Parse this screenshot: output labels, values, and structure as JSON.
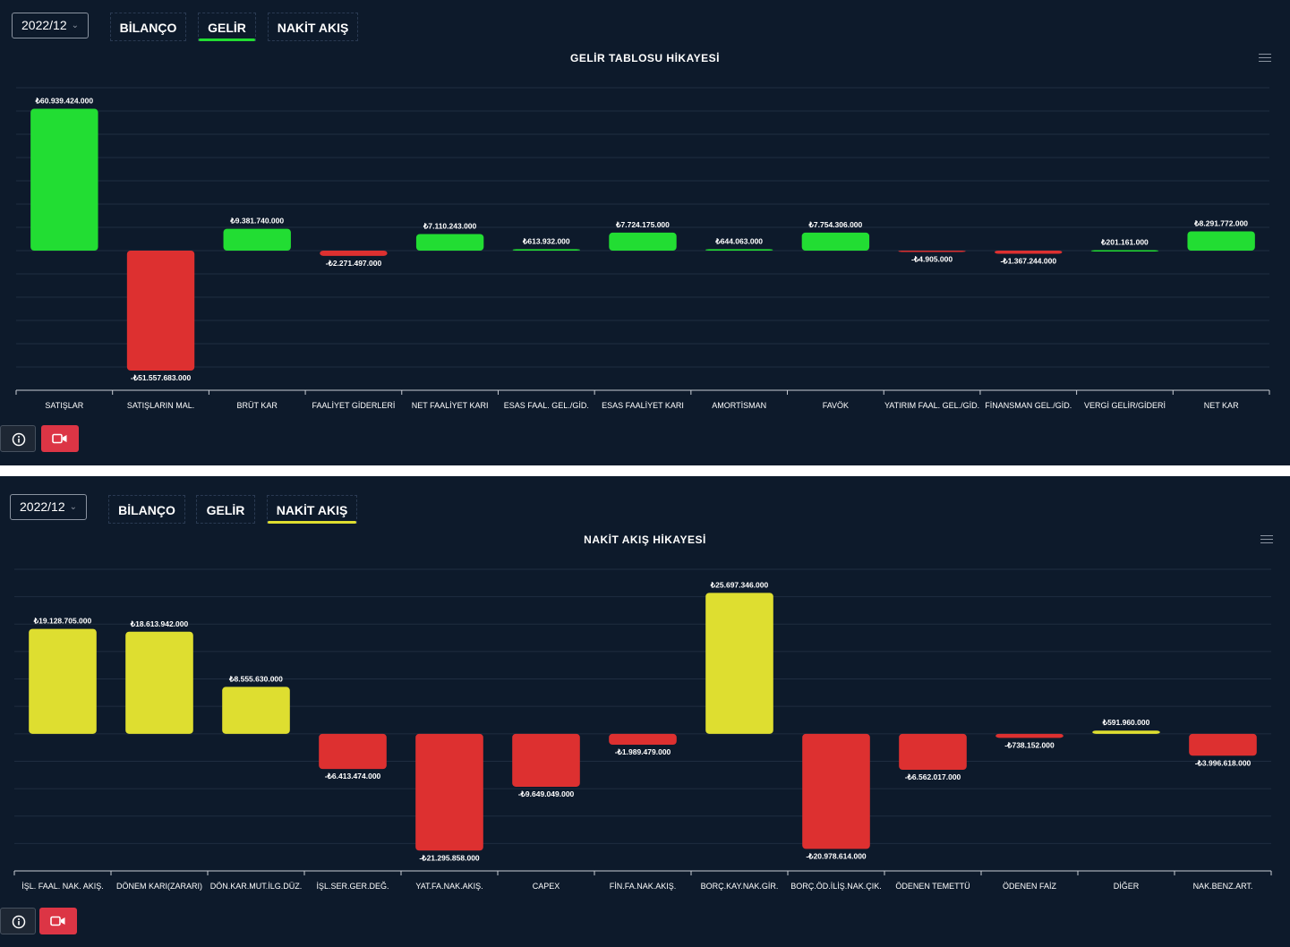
{
  "currency_colors": {
    "positive_income": "#22dd33",
    "negative": "#dd3030",
    "positive_cash": "#dede30",
    "background": "#0d1a2b"
  },
  "panels": [
    {
      "period": "2022/12",
      "tabs": [
        "BİLANÇO",
        "GELİR",
        "NAKİT AKIŞ"
      ],
      "active_tab": "GELİR",
      "active_color": "#22dd33",
      "chart_title": "GELİR TABLOSU HİKAYESİ"
    },
    {
      "period": "2022/12",
      "tabs": [
        "BİLANÇO",
        "GELİR",
        "NAKİT AKIŞ"
      ],
      "active_tab": "NAKİT AKIŞ",
      "active_color": "#dede30",
      "chart_title": "NAKİT AKIŞ HİKAYESİ"
    }
  ],
  "icons": [
    "info-icon",
    "video-icon",
    "menu-icon",
    "chevron-down-icon"
  ],
  "chart_data": [
    {
      "type": "bar",
      "title": "GELİR TABLOSU HİKAYESİ",
      "categories": [
        "SATIŞLAR",
        "SATIŞLARIN MAL.",
        "BRÜT KAR",
        "FAALİYET GİDERLERİ",
        "NET FAALİYET KARI",
        "ESAS FAAL. GEL./GİD.",
        "ESAS FAALİYET KARI",
        "AMORTİSMAN",
        "FAVÖK",
        "YATIRIM FAAL. GEL./GİD.",
        "FİNANSMAN GEL./GİD.",
        "VERGİ GELİR/GİDERİ",
        "NET KAR"
      ],
      "values": [
        60939424000,
        -51557683000,
        9381740000,
        -2271497000,
        7110243000,
        613932000,
        7724175000,
        644063000,
        7754306000,
        -4905000,
        -1367244000,
        201161000,
        8291772000
      ],
      "labels": [
        "₺60.939.424.000",
        "-₺51.557.683.000",
        "₺9.381.740.000",
        "-₺2.271.497.000",
        "₺7.110.243.000",
        "₺613.932.000",
        "₺7.724.175.000",
        "₺644.063.000",
        "₺7.754.306.000",
        "-₺4.905.000",
        "-₺1.367.244.000",
        "₺201.161.000",
        "₺8.291.772.000"
      ],
      "ylim": [
        -60000000000,
        70000000000
      ],
      "grid": true,
      "positive_color": "#22dd33",
      "negative_color": "#dd3030"
    },
    {
      "type": "bar",
      "title": "NAKİT AKIŞ HİKAYESİ",
      "categories": [
        "İŞL. FAAL. NAK. AKIŞ.",
        "DÖNEM KARI(ZARARI)",
        "DÖN.KAR.MUT.İLG.DÜZ.",
        "İŞL.SER.GER.DEĞ.",
        "YAT.FA.NAK.AKIŞ.",
        "CAPEX",
        "FİN.FA.NAK.AKIŞ.",
        "BORÇ.KAY.NAK.GİR.",
        "BORÇ.ÖD.İLİŞ.NAK.ÇIK.",
        "ÖDENEN TEMETTÜ",
        "ÖDENEN FAİZ",
        "DİĞER",
        "NAK.BENZ.ART."
      ],
      "values": [
        19128705000,
        18613942000,
        8555630000,
        -6413474000,
        -21295858000,
        -9649049000,
        -1989479000,
        25697346000,
        -20978614000,
        -6562017000,
        -738152000,
        591960000,
        -3996618000
      ],
      "labels": [
        "₺19.128.705.000",
        "₺18.613.942.000",
        "₺8.555.630.000",
        "-₺6.413.474.000",
        "-₺21.295.858.000",
        "-₺9.649.049.000",
        "-₺1.989.479.000",
        "₺25.697.346.000",
        "-₺20.978.614.000",
        "-₺6.562.017.000",
        "-₺738.152.000",
        "₺591.960.000",
        "-₺3.996.618.000"
      ],
      "ylim": [
        -25000000000,
        30000000000
      ],
      "grid": true,
      "positive_color": "#dede30",
      "negative_color": "#dd3030"
    }
  ]
}
